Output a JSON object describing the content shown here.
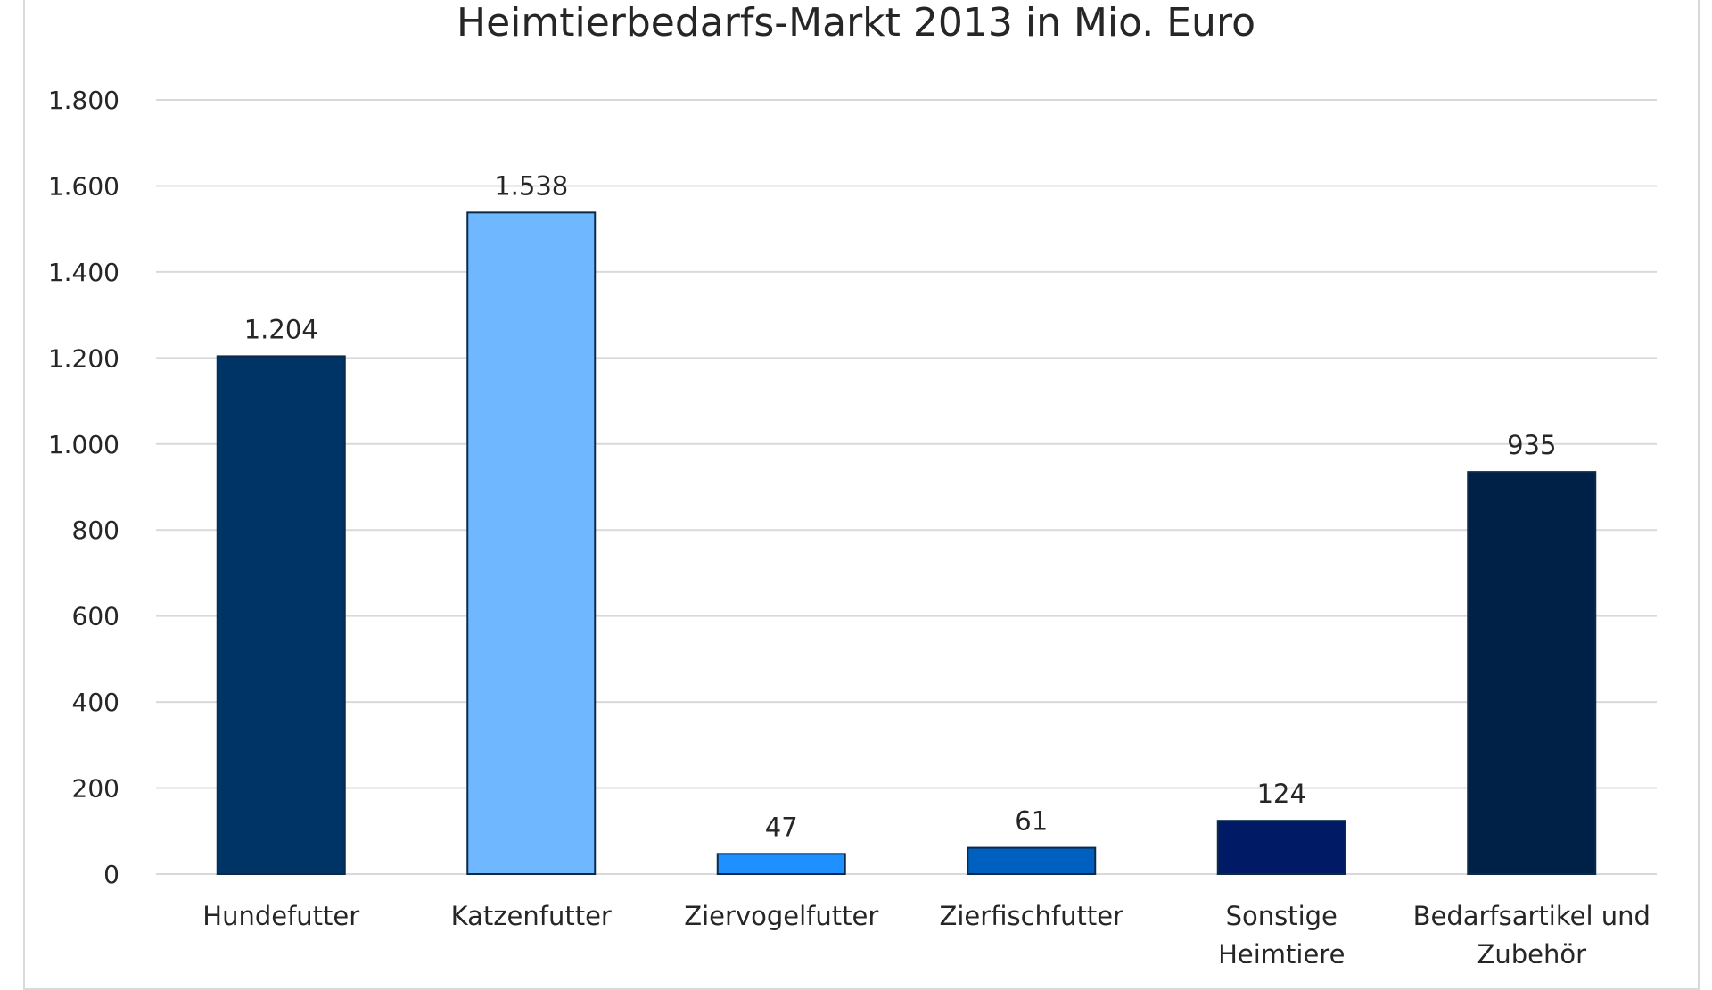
{
  "chart_data": {
    "type": "bar",
    "title": "Heimtierbedarfs-Markt 2013 in Mio. Euro",
    "categories": [
      [
        "Hundefutter"
      ],
      [
        "Katzenfutter"
      ],
      [
        "Ziervogelfutter"
      ],
      [
        "Zierfischfutter"
      ],
      [
        "Sonstige",
        "Heimtiere"
      ],
      [
        "Bedarfsartikel und",
        "Zubehör"
      ]
    ],
    "values": [
      1204,
      1538,
      47,
      61,
      124,
      935
    ],
    "value_labels": [
      "1.204",
      "1.538",
      "47",
      "61",
      "124",
      "935"
    ],
    "colors": [
      "#003366",
      "#6fb7ff",
      "#1e90ff",
      "#0060c0",
      "#001a66",
      "#002147"
    ],
    "ylim": [
      0,
      1800
    ],
    "yticks": [
      0,
      200,
      400,
      600,
      800,
      1000,
      1200,
      1400,
      1600,
      1800
    ],
    "ytick_labels": [
      "0",
      "200",
      "400",
      "600",
      "800",
      "1.000",
      "1.200",
      "1.400",
      "1.600",
      "1.800"
    ],
    "grid": true,
    "legend": "none"
  }
}
